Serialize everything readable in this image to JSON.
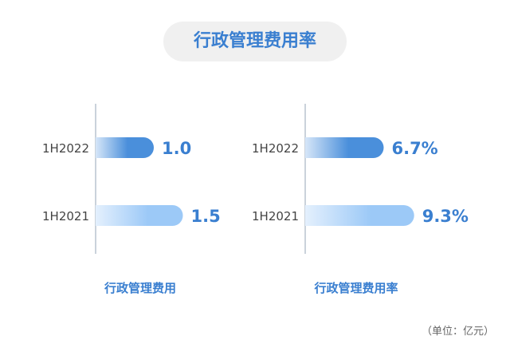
{
  "title": "行政管理费用率",
  "unit_note": "（单位：亿元）",
  "colors": {
    "accent": "#3a7fd0",
    "bar_2022": "#4a8fdb",
    "bar_2021": "#9cc9f7",
    "axis": "#b8c4cf",
    "text": "#444444"
  },
  "chart_data": [
    {
      "type": "bar",
      "orientation": "horizontal",
      "xlabel": "行政管理费用",
      "categories": [
        "1H2022",
        "1H2021"
      ],
      "values": [
        1.0,
        1.5
      ],
      "data_labels": [
        "1.0",
        "1.5"
      ]
    },
    {
      "type": "bar",
      "orientation": "horizontal",
      "xlabel": "行政管理费用率",
      "categories": [
        "1H2022",
        "1H2021"
      ],
      "values": [
        6.7,
        9.3
      ],
      "data_labels": [
        "6.7%",
        "9.3%"
      ]
    }
  ]
}
